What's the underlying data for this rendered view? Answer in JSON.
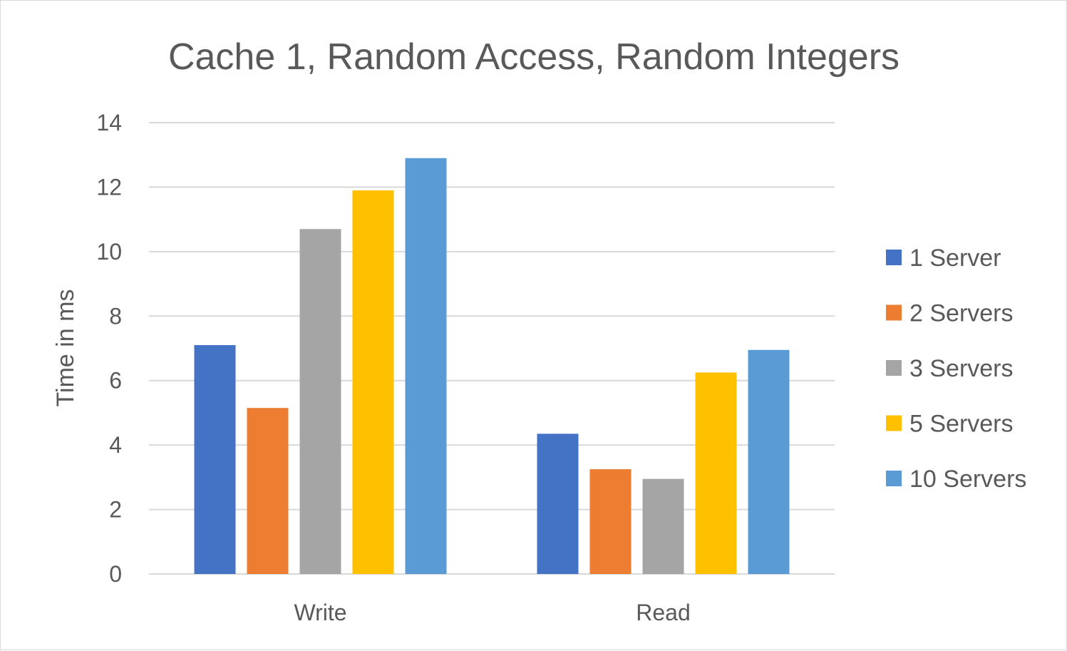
{
  "chart_data": {
    "type": "bar",
    "title": "Cache 1, Random Access, Random Integers",
    "xlabel": "",
    "ylabel": "Time in ms",
    "ylim": [
      0,
      14
    ],
    "yticks": [
      0,
      2,
      4,
      6,
      8,
      10,
      12,
      14
    ],
    "grid": true,
    "legend_position": "right",
    "categories": [
      "Write",
      "Read"
    ],
    "series": [
      {
        "name": "1 Server",
        "color": "#4472c4",
        "values": [
          7.1,
          4.35
        ]
      },
      {
        "name": "2 Servers",
        "color": "#ed7d31",
        "values": [
          5.15,
          3.25
        ]
      },
      {
        "name": "3 Servers",
        "color": "#a5a5a5",
        "values": [
          10.7,
          2.95
        ]
      },
      {
        "name": "5 Servers",
        "color": "#ffc000",
        "values": [
          11.9,
          6.25
        ]
      },
      {
        "name": "10 Servers",
        "color": "#5b9bd5",
        "values": [
          12.9,
          6.95
        ]
      }
    ]
  }
}
